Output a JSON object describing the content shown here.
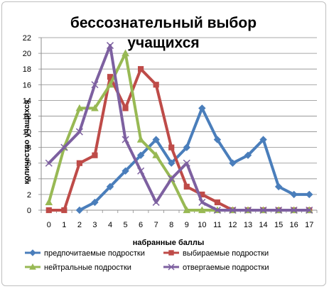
{
  "chart_data": {
    "type": "line",
    "title_line1": "бессознательный выбор",
    "title_line2": "учащихся",
    "xlabel": "набранные баллы",
    "ylabel": "количество учащихся",
    "x": [
      0,
      1,
      2,
      3,
      4,
      5,
      6,
      7,
      8,
      9,
      10,
      11,
      12,
      13,
      14,
      15,
      16,
      17
    ],
    "ylim": [
      0,
      22
    ],
    "yticks": [
      0,
      2,
      4,
      6,
      8,
      10,
      12,
      14,
      16,
      18,
      20,
      22
    ],
    "grid": true,
    "legend_position": "bottom",
    "series": [
      {
        "name": "предпочитаемые подростки",
        "color": "#4a7ebb",
        "marker": "diamond",
        "x": [
          2,
          3,
          4,
          5,
          6,
          7,
          8,
          9,
          10,
          11,
          12,
          13,
          14,
          15,
          16,
          17
        ],
        "values": [
          0,
          1,
          3,
          5,
          7,
          9,
          6,
          8,
          13,
          9,
          6,
          7,
          9,
          3,
          2,
          2
        ]
      },
      {
        "name": "выбираемые подростки",
        "color": "#be4b48",
        "marker": "square",
        "x": [
          0,
          1,
          2,
          3,
          4,
          5,
          6,
          7,
          8,
          9,
          10,
          11,
          12,
          13,
          14,
          15,
          16,
          17
        ],
        "values": [
          0,
          0,
          6,
          7,
          17,
          13,
          18,
          16,
          8,
          3,
          2,
          1,
          0,
          0,
          0,
          0,
          0,
          0
        ]
      },
      {
        "name": "нейтральные подростки",
        "color": "#98b954",
        "marker": "triangle",
        "x": [
          0,
          1,
          2,
          3,
          4,
          5,
          6,
          7,
          8,
          9,
          10,
          11,
          12,
          13,
          14,
          15,
          16,
          17
        ],
        "values": [
          1,
          8,
          13,
          13,
          16,
          20,
          9,
          7,
          4,
          0,
          0,
          0,
          0,
          0,
          0,
          0,
          0,
          0
        ]
      },
      {
        "name": "отвергаемые подростки",
        "color": "#7d60a0",
        "marker": "x",
        "x": [
          0,
          1,
          2,
          3,
          4,
          5,
          6,
          7,
          8,
          9,
          10,
          11,
          12,
          13,
          14,
          15,
          16,
          17
        ],
        "values": [
          6,
          8,
          10,
          16,
          21,
          9,
          5,
          1,
          4,
          6,
          1,
          0,
          0,
          0,
          0,
          0,
          0,
          0
        ]
      }
    ]
  }
}
